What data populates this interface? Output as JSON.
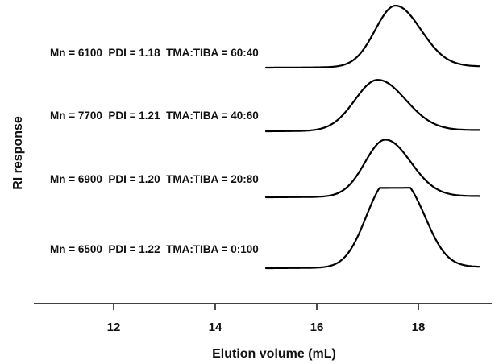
{
  "chart_data": {
    "type": "line",
    "xlabel": "Elution volume (mL)",
    "ylabel": "RI response",
    "xticks": [
      12,
      14,
      16,
      18
    ],
    "xlim": [
      10.9,
      20.0
    ],
    "grid": false,
    "series": [
      {
        "label": "Mn = 6100  PDI = 1.18  TMA:TIBA = 60:40",
        "peak": 17.55,
        "sigma_left": 0.4,
        "sigma_right": 0.5,
        "height": 1.0,
        "x_start": 15.0,
        "x_end": 19.2
      },
      {
        "label": "Mn = 7700  PDI = 1.21  TMA:TIBA = 40:60",
        "peak": 17.2,
        "sigma_left": 0.45,
        "sigma_right": 0.55,
        "height": 0.83,
        "x_start": 15.0,
        "x_end": 19.2
      },
      {
        "label": "Mn = 6900  PDI = 1.20  TMA:TIBA = 20:80",
        "peak": 17.35,
        "sigma_left": 0.4,
        "sigma_right": 0.5,
        "height": 0.93,
        "x_start": 15.0,
        "x_end": 19.2
      },
      {
        "label": "Mn = 6500  PDI = 1.22  TMA:TIBA = 0:100",
        "peak": 17.35,
        "sigma_left": 0.4,
        "sigma_right": 0.55,
        "height": 1.28,
        "shoulder": {
          "center": 17.9,
          "sigma": 0.35,
          "height": 0.45
        },
        "x_start": 15.0,
        "x_end": 19.2
      }
    ]
  }
}
